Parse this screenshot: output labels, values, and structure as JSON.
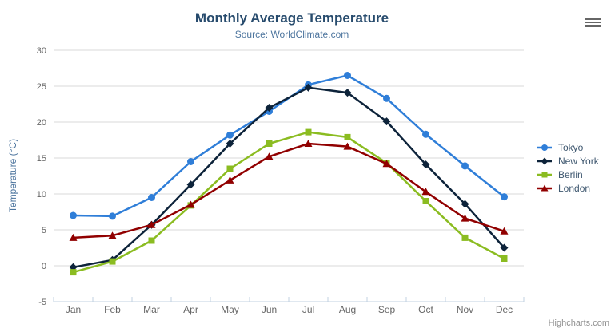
{
  "chart_data": {
    "type": "line",
    "title": "Monthly Average Temperature",
    "subtitle": "Source: WorldClimate.com",
    "xlabel": "",
    "ylabel": "Temperature (°C)",
    "categories": [
      "Jan",
      "Feb",
      "Mar",
      "Apr",
      "May",
      "Jun",
      "Jul",
      "Aug",
      "Sep",
      "Oct",
      "Nov",
      "Dec"
    ],
    "ylim": [
      -5,
      30
    ],
    "ytick_step": 5,
    "yticks": [
      -5,
      0,
      5,
      10,
      15,
      20,
      25,
      30
    ],
    "grid": true,
    "legend_position": "right",
    "series": [
      {
        "name": "Tokyo",
        "color": "#2f7ed8",
        "marker": "circle",
        "values": [
          7.0,
          6.9,
          9.5,
          14.5,
          18.2,
          21.5,
          25.2,
          26.5,
          23.3,
          18.3,
          13.9,
          9.6
        ]
      },
      {
        "name": "New York",
        "color": "#0d233a",
        "marker": "diamond",
        "values": [
          -0.2,
          0.8,
          5.7,
          11.3,
          17.0,
          22.0,
          24.8,
          24.1,
          20.1,
          14.1,
          8.6,
          2.5
        ]
      },
      {
        "name": "Berlin",
        "color": "#8bbc21",
        "marker": "square",
        "values": [
          -0.9,
          0.6,
          3.5,
          8.4,
          13.5,
          17.0,
          18.6,
          17.9,
          14.3,
          9.0,
          3.9,
          1.0
        ]
      },
      {
        "name": "London",
        "color": "#910000",
        "marker": "triangle",
        "values": [
          3.9,
          4.2,
          5.7,
          8.5,
          11.9,
          15.2,
          17.0,
          16.6,
          14.2,
          10.3,
          6.6,
          4.8
        ]
      }
    ]
  },
  "colors": {
    "title": "#274b6d",
    "subtitle": "#4d759e",
    "axis_title": "#4d759e",
    "axis_label": "#666666",
    "axis_line": "#c0d0e0",
    "grid": "#d8d8d8",
    "legend_text": "#3e576f",
    "credits": "#909090",
    "export_icon": "#666666",
    "background": "#ffffff"
  },
  "credits": {
    "label": "Highcharts.com"
  }
}
